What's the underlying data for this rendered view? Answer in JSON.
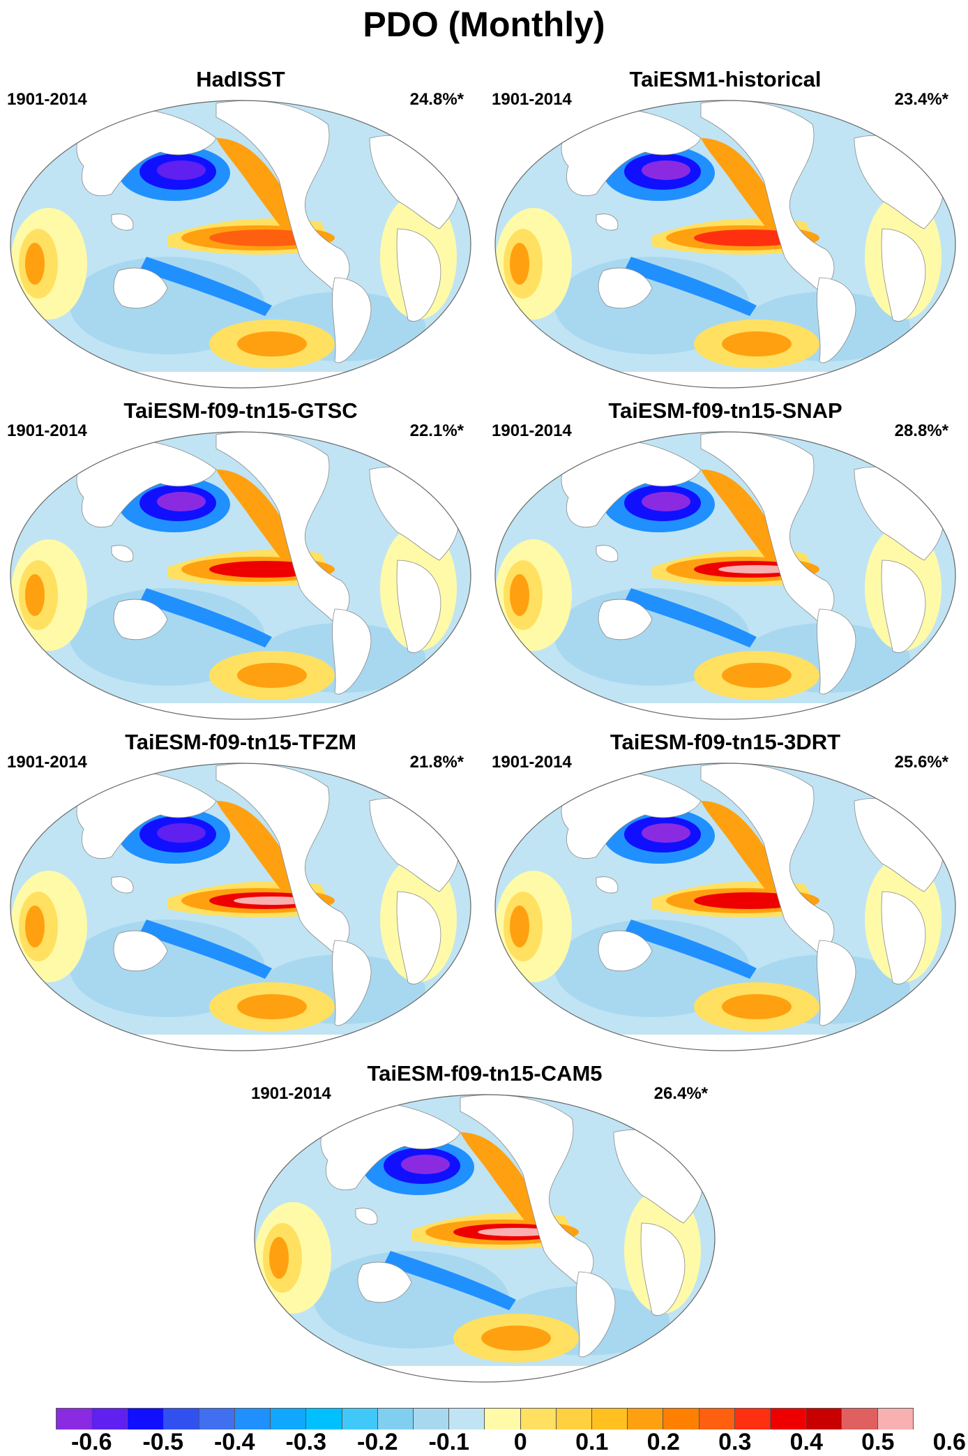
{
  "title": "PDO (Monthly)",
  "panels": [
    {
      "title": "HadISST",
      "period": "1901-2014",
      "variance": "24.8%*"
    },
    {
      "title": "TaiESM1-historical",
      "period": "1901-2014",
      "variance": "23.4%*"
    },
    {
      "title": "TaiESM-f09-tn15-GTSC",
      "period": "1901-2014",
      "variance": "22.1%*"
    },
    {
      "title": "TaiESM-f09-tn15-SNAP",
      "period": "1901-2014",
      "variance": "28.8%*"
    },
    {
      "title": "TaiESM-f09-tn15-TFZM",
      "period": "1901-2014",
      "variance": "21.8%*"
    },
    {
      "title": "TaiESM-f09-tn15-3DRT",
      "period": "1901-2014",
      "variance": "25.6%*"
    },
    {
      "title": "TaiESM-f09-tn15-CAM5",
      "period": "1901-2014",
      "variance": "26.4%*"
    }
  ],
  "colorbar": {
    "colors": [
      "#8a2be2",
      "#6020f0",
      "#1010ff",
      "#3050f0",
      "#4070f0",
      "#2090ff",
      "#10a8ff",
      "#00c0ff",
      "#40c8f8",
      "#80cff0",
      "#a8d8f0",
      "#c0e4f4",
      "#fffaa8",
      "#ffe060",
      "#ffd040",
      "#ffc020",
      "#ffa010",
      "#ff8000",
      "#ff6010",
      "#ff3010",
      "#ee0000",
      "#c80000",
      "#e06060",
      "#f8b0b0"
    ],
    "labels": [
      "-0.6",
      "-0.5",
      "-0.4",
      "-0.3",
      "-0.2",
      "-0.1",
      "0",
      "0.1",
      "0.2",
      "0.3",
      "0.4",
      "0.5",
      "0.6"
    ]
  }
}
